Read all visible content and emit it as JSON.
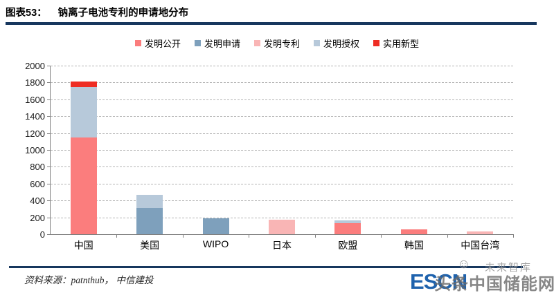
{
  "header": {
    "tag": "图表53：",
    "title": "钠离子电池专利的申请地分布"
  },
  "footer": {
    "source": "资料来源：patnthub， 中信建投"
  },
  "watermark": {
    "escn": "ESCN",
    "cn_site": "头条中国储能网",
    "vzkoo": "未来智库",
    "smiley_icon": "☺",
    "escn_color": "#1e62ad"
  },
  "colors": {
    "rule_navy": "#17375e",
    "axis_gray": "#7f7f7f",
    "gridline_gray": "#b3b3b3"
  },
  "chart_data": {
    "type": "bar",
    "subtype": "stacked-vertical",
    "title": "钠离子电池专利的申请地分布",
    "categories": [
      "中国",
      "美国",
      "WIPO",
      "日本",
      "欧盟",
      "韩国",
      "中国台湾"
    ],
    "series": [
      {
        "name": "发明公开",
        "color": "#fb7d7d",
        "values": [
          1150,
          0,
          0,
          0,
          130,
          60,
          0
        ]
      },
      {
        "name": "发明申请",
        "color": "#7ea0bc",
        "values": [
          0,
          310,
          190,
          0,
          0,
          0,
          0
        ]
      },
      {
        "name": "发明专利",
        "color": "#f9b5b5",
        "values": [
          0,
          0,
          0,
          175,
          0,
          0,
          30
        ]
      },
      {
        "name": "发明授权",
        "color": "#b7c9da",
        "values": [
          600,
          160,
          0,
          0,
          30,
          0,
          0
        ]
      },
      {
        "name": "实用新型",
        "color": "#ee2d24",
        "values": [
          60,
          0,
          0,
          0,
          0,
          0,
          0
        ]
      }
    ],
    "totals": [
      1810,
      470,
      190,
      175,
      160,
      60,
      30
    ],
    "xlabel": "",
    "ylabel": "",
    "ylim": [
      0,
      2000
    ],
    "ytick_step": 200,
    "grid": "dashed-horizontal",
    "legend_position": "top-center"
  }
}
